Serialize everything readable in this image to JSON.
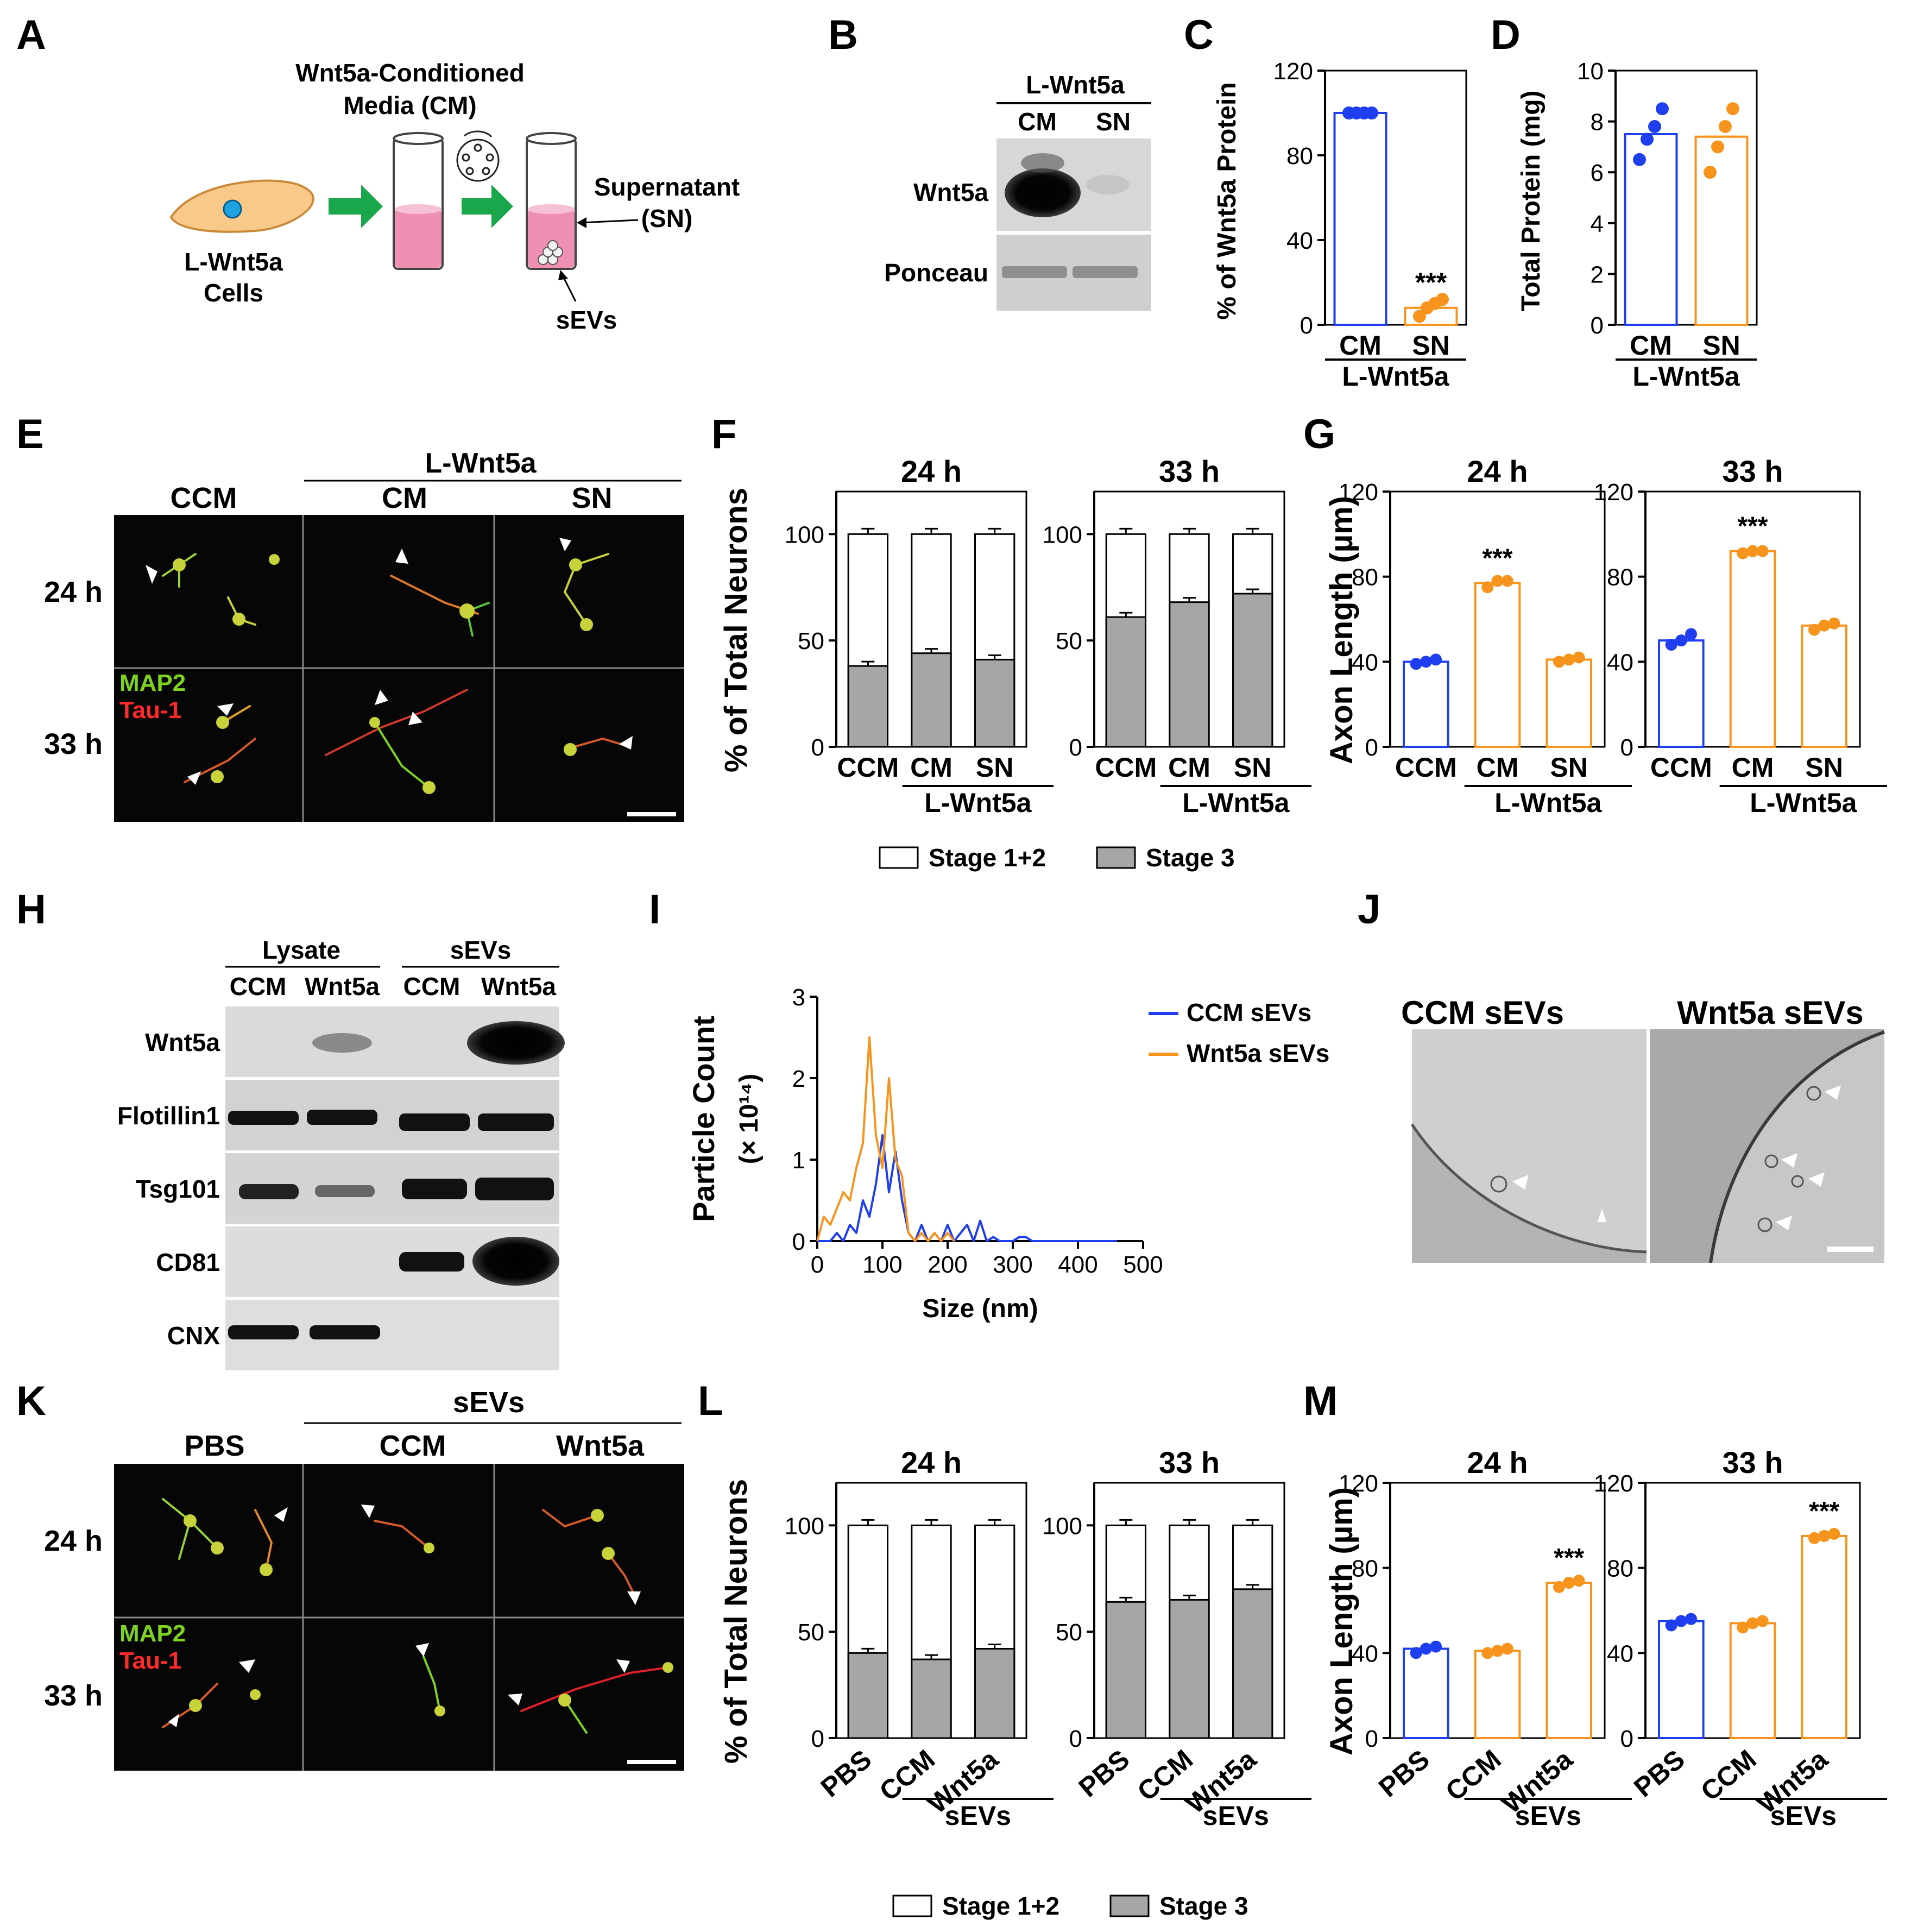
{
  "colors": {
    "ccm": "#1f3ef0",
    "wnt5a": "#f7941d",
    "stage3": "#a6a6a6",
    "green_arrow": "#1aa64a",
    "tube_fill": "#ef8fb4",
    "cell": "#f9c98a"
  },
  "panel_letters": [
    "A",
    "B",
    "C",
    "D",
    "E",
    "F",
    "G",
    "H",
    "I",
    "J",
    "K",
    "L",
    "M"
  ],
  "panel_a": {
    "cm_label": "Wnt5a-Conditioned",
    "cm_label2": "Media (CM)",
    "cell_label": "L-Wnt5a",
    "cell_label2": "Cells",
    "supernatant": "Supernatant",
    "supernatant2": "(SN)",
    "sevs": "sEVs"
  },
  "panel_b": {
    "header": "L-Wnt5a",
    "lanes": [
      "CM",
      "SN"
    ],
    "rows": [
      "Wnt5a",
      "Ponceau"
    ]
  },
  "panel_e": {
    "ctrl": "CCM",
    "group": "L-Wnt5a",
    "cols": [
      "CM",
      "SN"
    ],
    "rows": [
      "24 h",
      "33 h"
    ],
    "stain1": "MAP2",
    "stain2": "Tau-1"
  },
  "panel_h": {
    "groups": [
      "Lysate",
      "sEVs"
    ],
    "lanes": [
      "CCM",
      "Wnt5a",
      "CCM",
      "Wnt5a"
    ],
    "rows": [
      "Wnt5a",
      "Flotillin1",
      "Tsg101",
      "CD81",
      "CNX"
    ]
  },
  "panel_j": {
    "labels": [
      "CCM sEVs",
      "Wnt5a sEVs"
    ]
  },
  "panel_k": {
    "ctrl": "PBS",
    "group": "sEVs",
    "cols": [
      "CCM",
      "Wnt5a"
    ],
    "rows": [
      "24 h",
      "33 h"
    ],
    "stain1": "MAP2",
    "stain2": "Tau-1"
  },
  "stage_legend": {
    "stage12": "Stage 1+2",
    "stage3": "Stage 3"
  },
  "chart_data": [
    {
      "id": "C",
      "type": "bar",
      "ylabel": "% of Wnt5a Protein",
      "ylim": [
        0,
        120
      ],
      "yticks": [
        0,
        40,
        80,
        120
      ],
      "categories": [
        "CM",
        "SN"
      ],
      "group": "L-Wnt5a",
      "values": [
        100,
        8
      ],
      "colors": [
        "ccm",
        "wnt5a"
      ],
      "points": [
        [
          100,
          100,
          100,
          100
        ],
        [
          4,
          8,
          10,
          12
        ]
      ],
      "annotation": {
        "index": 1,
        "text": "***"
      }
    },
    {
      "id": "D",
      "type": "bar",
      "ylabel": "Total Protein (mg)",
      "ylim": [
        0,
        10
      ],
      "yticks": [
        0,
        2,
        4,
        6,
        8,
        10
      ],
      "categories": [
        "CM",
        "SN"
      ],
      "group": "L-Wnt5a",
      "values": [
        7.5,
        7.4
      ],
      "colors": [
        "ccm",
        "wnt5a"
      ],
      "points": [
        [
          6.5,
          7.3,
          7.8,
          8.5
        ],
        [
          6.0,
          7.0,
          7.8,
          8.5
        ]
      ]
    },
    {
      "id": "F",
      "type": "stacked-bar",
      "ylabel": "% of Total Neurons",
      "ylim": [
        0,
        120
      ],
      "yticks": [
        0,
        50,
        100
      ],
      "facets": [
        {
          "title": "24 h",
          "categories": [
            "CCM",
            "CM",
            "SN"
          ],
          "stage3": [
            38,
            44,
            41
          ],
          "total": [
            100,
            100,
            100
          ]
        },
        {
          "title": "33 h",
          "categories": [
            "CCM",
            "CM",
            "SN"
          ],
          "stage3": [
            61,
            68,
            72
          ],
          "total": [
            100,
            100,
            100
          ]
        }
      ],
      "group": "L-Wnt5a",
      "group_start": 1
    },
    {
      "id": "G",
      "type": "bar",
      "ylabel": "Axon Length (µm)",
      "ylim": [
        0,
        120
      ],
      "yticks": [
        0,
        40,
        80,
        120
      ],
      "facets": [
        {
          "title": "24 h",
          "categories": [
            "CCM",
            "CM",
            "SN"
          ],
          "values": [
            40,
            77,
            41
          ],
          "points": [
            [
              39,
              40,
              41
            ],
            [
              75,
              78,
              78
            ],
            [
              40,
              41,
              42
            ]
          ],
          "annotation": {
            "index": 1,
            "text": "***"
          }
        },
        {
          "title": "33 h",
          "categories": [
            "CCM",
            "CM",
            "SN"
          ],
          "values": [
            50,
            92,
            57
          ],
          "points": [
            [
              48,
              50,
              53
            ],
            [
              91,
              92,
              92
            ],
            [
              55,
              57,
              58
            ]
          ],
          "annotation": {
            "index": 1,
            "text": "***"
          }
        }
      ],
      "colors": [
        "ccm",
        "wnt5a",
        "wnt5a"
      ],
      "group": "L-Wnt5a",
      "group_start": 1
    },
    {
      "id": "I",
      "type": "line",
      "xlabel": "Size (nm)",
      "ylabel": "Particle Count",
      "ylabel2": "(× 10¹⁴)",
      "xlim": [
        0,
        500
      ],
      "ylim": [
        0,
        3
      ],
      "xticks": [
        0,
        100,
        200,
        300,
        400,
        500
      ],
      "yticks": [
        0,
        1,
        2,
        3
      ],
      "series": [
        {
          "name": "CCM sEVs",
          "color": "ccm",
          "x": [
            0,
            10,
            20,
            30,
            40,
            50,
            60,
            70,
            80,
            90,
            100,
            110,
            120,
            130,
            140,
            150,
            160,
            170,
            180,
            190,
            200,
            210,
            220,
            230,
            240,
            250,
            260,
            270,
            280,
            290,
            300,
            310,
            320,
            330,
            340,
            350,
            400,
            460
          ],
          "y": [
            0,
            0,
            0,
            0.1,
            0,
            0.2,
            0.1,
            0.5,
            0.3,
            0.7,
            1.3,
            0.6,
            1.1,
            0.5,
            0.1,
            0,
            0.2,
            0,
            0.1,
            0,
            0.2,
            0,
            0.1,
            0.2,
            0,
            0.25,
            0,
            0.05,
            0,
            0,
            0,
            0.05,
            0.05,
            0,
            0,
            0,
            0,
            0
          ]
        },
        {
          "name": "Wnt5a sEVs",
          "color": "wnt5a",
          "x": [
            0,
            10,
            20,
            30,
            40,
            50,
            60,
            70,
            80,
            90,
            100,
            110,
            120,
            130,
            140,
            150,
            160,
            170,
            180,
            190,
            200,
            210
          ],
          "y": [
            0,
            0.3,
            0.2,
            0.4,
            0.6,
            0.5,
            0.9,
            1.2,
            2.5,
            1.3,
            0.9,
            2.0,
            1.0,
            0.8,
            0.1,
            0,
            0.1,
            0,
            0.1,
            0,
            0.1,
            0
          ]
        }
      ]
    },
    {
      "id": "L",
      "type": "stacked-bar",
      "ylabel": "% of Total Neurons",
      "ylim": [
        0,
        120
      ],
      "yticks": [
        0,
        50,
        100
      ],
      "facets": [
        {
          "title": "24 h",
          "categories": [
            "PBS",
            "CCM",
            "Wnt5a"
          ],
          "stage3": [
            40,
            37,
            42
          ],
          "total": [
            100,
            100,
            100
          ]
        },
        {
          "title": "33 h",
          "categories": [
            "PBS",
            "CCM",
            "Wnt5a"
          ],
          "stage3": [
            64,
            65,
            70
          ],
          "total": [
            100,
            100,
            100
          ]
        }
      ],
      "group": "sEVs",
      "group_start": 1
    },
    {
      "id": "M",
      "type": "bar",
      "ylabel": "Axon Length (µm)",
      "ylim": [
        0,
        120
      ],
      "yticks": [
        0,
        40,
        80,
        120
      ],
      "facets": [
        {
          "title": "24 h",
          "categories": [
            "PBS",
            "CCM",
            "Wnt5a"
          ],
          "values": [
            42,
            41,
            73
          ],
          "points": [
            [
              40,
              42,
              43
            ],
            [
              40,
              41,
              42
            ],
            [
              71,
              73,
              74
            ]
          ],
          "annotation": {
            "index": 2,
            "text": "***"
          }
        },
        {
          "title": "33 h",
          "categories": [
            "PBS",
            "CCM",
            "Wnt5a"
          ],
          "values": [
            55,
            54,
            95
          ],
          "points": [
            [
              53,
              55,
              56
            ],
            [
              52,
              54,
              55
            ],
            [
              94,
              95,
              96
            ]
          ],
          "annotation": {
            "index": 2,
            "text": "***"
          }
        }
      ],
      "colors": [
        "ccm",
        "wnt5a",
        "wnt5a"
      ],
      "group": "sEVs",
      "group_start": 1
    }
  ]
}
